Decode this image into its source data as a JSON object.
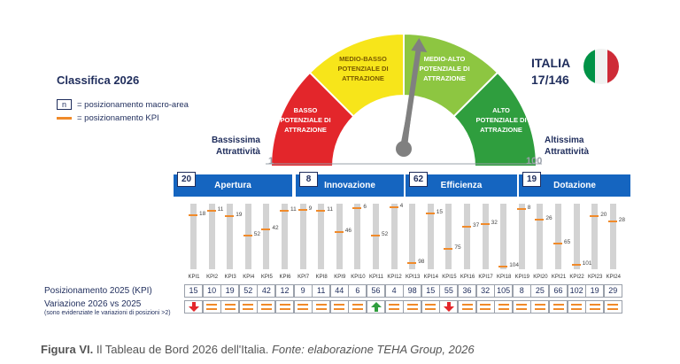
{
  "classifica_title": "Classifica 2026",
  "legend": {
    "box_symbol": "n",
    "macro_area": "= posizionamento macro-area",
    "kpi": "= posizionamento KPI"
  },
  "gauge": {
    "segments": [
      {
        "line1": "Basso",
        "line2": "Potenziale di",
        "line3": "Attrazione",
        "color": "#e3262b"
      },
      {
        "line1": "Medio-basso",
        "line2": "Potenziale di",
        "line3": "Attrazione",
        "color": "#f7e51a"
      },
      {
        "line1": "Medio-alto",
        "line2": "Potenziale di",
        "line3": "Attrazione",
        "color": "#8dc641"
      },
      {
        "line1": "Alto",
        "line2": "Potenziale di",
        "line3": "Attrazione",
        "color": "#2f9e3e"
      }
    ],
    "low_label_1": "Bassissima",
    "low_label_2": "Attrattività",
    "high_label_1": "Altissima",
    "high_label_2": "Attrattività",
    "scale_min": "1",
    "scale_max": "100",
    "needle_value": 17
  },
  "country": {
    "name": "ITALIA",
    "rank": "17/146",
    "flag_colors": [
      "#009246",
      "#f1f2f1",
      "#ce2b37"
    ]
  },
  "row_labels": {
    "position": "Posizionamento 2025 (KPI)",
    "variation": "Variazione 2026 vs 2025",
    "variation_note": "(sono evidenziate le variazioni di posizioni >2)"
  },
  "caption": {
    "figure": "Figura VI.",
    "text": " Il Tableau de Bord 2026 dell'Italia. ",
    "source": "Fonte: elaborazione TEHA Group, 2026"
  },
  "chart_data": {
    "type": "bar",
    "title": "",
    "ylim": [
      1,
      146
    ],
    "areas": [
      {
        "name": "Apertura",
        "rank": "20",
        "kpis": [
          "KPI1",
          "KPI2",
          "KPI3",
          "KPI4",
          "KPI5",
          "KPI6"
        ]
      },
      {
        "name": "Innovazione",
        "rank": "8",
        "kpis": [
          "KPI7",
          "KPI8",
          "KPI9",
          "KPI10",
          "KPI11",
          "KPI12"
        ]
      },
      {
        "name": "Efficienza",
        "rank": "62",
        "kpis": [
          "KPI13",
          "KPI14",
          "KPI15",
          "KPI16",
          "KPI17",
          "KPI18"
        ]
      },
      {
        "name": "Dotazione",
        "rank": "19",
        "kpis": [
          "KPI19",
          "KPI20",
          "KPI21",
          "KPI22",
          "KPI23",
          "KPI24"
        ]
      }
    ],
    "categories": [
      "KPI1",
      "KPI2",
      "KPI3",
      "KPI4",
      "KPI5",
      "KPI6",
      "KPI7",
      "KPI8",
      "KPI9",
      "KPI10",
      "KPI11",
      "KPI12",
      "KPI13",
      "KPI14",
      "KPI15",
      "KPI16",
      "KPI17",
      "KPI18",
      "KPI19",
      "KPI20",
      "KPI21",
      "KPI22",
      "KPI23",
      "KPI24"
    ],
    "kpi_2026": [
      18,
      11,
      19,
      52,
      42,
      11,
      9,
      11,
      46,
      6,
      52,
      4,
      98,
      15,
      75,
      37,
      32,
      104,
      8,
      26,
      65,
      101,
      20,
      28
    ],
    "kpi_2025": [
      15,
      10,
      19,
      52,
      42,
      12,
      9,
      11,
      44,
      6,
      56,
      4,
      98,
      15,
      55,
      36,
      32,
      105,
      8,
      25,
      66,
      102,
      19,
      29
    ],
    "variation": [
      "down",
      "eq",
      "eq",
      "eq",
      "eq",
      "eq",
      "eq",
      "eq",
      "eq",
      "eq",
      "up",
      "eq",
      "eq",
      "eq",
      "down",
      "eq",
      "eq",
      "eq",
      "eq",
      "eq",
      "eq",
      "eq",
      "eq",
      "eq"
    ]
  }
}
